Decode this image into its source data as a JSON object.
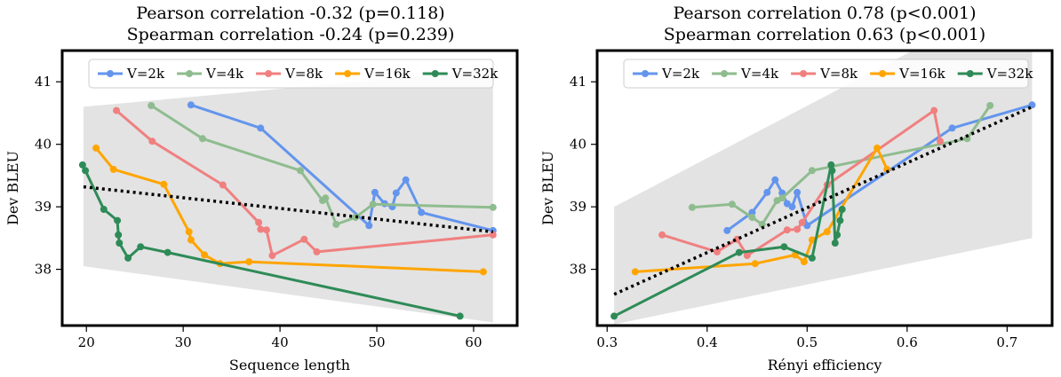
{
  "chart_data": [
    {
      "type": "line",
      "title": [
        "Pearson correlation -0.32 (p=0.118)",
        "Spearman correlation -0.24 (p=0.239)"
      ],
      "xlabel": "Sequence length",
      "ylabel": "Dev BLEU",
      "xlim": [
        17.5,
        64.5
      ],
      "ylim": [
        37.1,
        41.5
      ],
      "xticks": [
        20,
        30,
        40,
        50,
        60
      ],
      "yticks": [
        38,
        39,
        40,
        41
      ],
      "legend_loc": "top",
      "trend_line": [
        [
          19.7,
          39.32
        ],
        [
          62,
          38.6
        ]
      ],
      "confidence_band": [
        [
          19.7,
          38.05,
          40.6
        ],
        [
          62,
          37.15,
          41.2
        ]
      ],
      "series": [
        {
          "name": "V=2k",
          "color": "#6495ED",
          "points": [
            [
              30.8,
              40.63
            ],
            [
              38.0,
              40.26
            ],
            [
              49.2,
              38.7
            ],
            [
              49.8,
              39.23
            ],
            [
              50.8,
              39.05
            ],
            [
              51.6,
              39.0
            ],
            [
              52.0,
              39.22
            ],
            [
              53.0,
              39.43
            ],
            [
              54.6,
              38.91
            ],
            [
              62.0,
              38.62
            ]
          ]
        },
        {
          "name": "V=4k",
          "color": "#8FBC8F",
          "points": [
            [
              26.7,
              40.62
            ],
            [
              32.0,
              40.09
            ],
            [
              42.1,
              39.58
            ],
            [
              44.4,
              39.1
            ],
            [
              44.7,
              39.14
            ],
            [
              45.8,
              38.72
            ],
            [
              47.8,
              38.83
            ],
            [
              49.6,
              39.04
            ],
            [
              62.0,
              38.99
            ]
          ]
        },
        {
          "name": "V=8k",
          "color": "#F08080",
          "points": [
            [
              23.1,
              40.54
            ],
            [
              26.8,
              40.05
            ],
            [
              34.1,
              39.35
            ],
            [
              37.8,
              38.75
            ],
            [
              38.0,
              38.64
            ],
            [
              38.6,
              38.63
            ],
            [
              39.2,
              38.22
            ],
            [
              42.5,
              38.48
            ],
            [
              43.8,
              38.28
            ],
            [
              62.0,
              38.55
            ]
          ]
        },
        {
          "name": "V=16k",
          "color": "#FFA500",
          "points": [
            [
              21.0,
              39.94
            ],
            [
              22.8,
              39.6
            ],
            [
              28.0,
              39.36
            ],
            [
              30.6,
              38.6
            ],
            [
              30.8,
              38.47
            ],
            [
              32.2,
              38.23
            ],
            [
              33.8,
              38.09
            ],
            [
              36.8,
              38.12
            ],
            [
              61.0,
              37.96
            ]
          ]
        },
        {
          "name": "V=32k",
          "color": "#2E8B57",
          "points": [
            [
              19.6,
              39.67
            ],
            [
              19.9,
              39.58
            ],
            [
              21.8,
              38.96
            ],
            [
              23.2,
              38.78
            ],
            [
              23.3,
              38.55
            ],
            [
              23.4,
              38.42
            ],
            [
              24.3,
              38.18
            ],
            [
              25.6,
              38.36
            ],
            [
              28.4,
              38.27
            ],
            [
              58.6,
              37.25
            ]
          ]
        }
      ]
    },
    {
      "type": "line",
      "title": [
        "Pearson correlation 0.78 (p<0.001)",
        "Spearman correlation 0.63 (p<0.001)"
      ],
      "xlabel": "Rényi efficiency",
      "ylabel": "Dev BLEU",
      "xlim": [
        0.29,
        0.745
      ],
      "ylim": [
        37.1,
        41.5
      ],
      "xticks": [
        0.3,
        0.4,
        0.5,
        0.6,
        0.7
      ],
      "xtick_labels": [
        "0.3",
        "0.4",
        "0.5",
        "0.6",
        "0.7"
      ],
      "yticks": [
        38,
        39,
        40,
        41
      ],
      "legend_loc": "top",
      "trend_line": [
        [
          0.307,
          37.6
        ],
        [
          0.725,
          40.6
        ]
      ],
      "confidence_band": [
        [
          0.307,
          37.12,
          39.0
        ],
        [
          0.725,
          38.5,
          42.5
        ]
      ],
      "series": [
        {
          "name": "V=2k",
          "color": "#6495ED",
          "points": [
            [
              0.42,
              38.62
            ],
            [
              0.445,
              38.91
            ],
            [
              0.46,
              39.23
            ],
            [
              0.468,
              39.43
            ],
            [
              0.475,
              39.22
            ],
            [
              0.48,
              39.05
            ],
            [
              0.485,
              39.0
            ],
            [
              0.49,
              39.23
            ],
            [
              0.5,
              38.7
            ],
            [
              0.645,
              40.26
            ],
            [
              0.725,
              40.63
            ]
          ]
        },
        {
          "name": "V=4k",
          "color": "#8FBC8F",
          "points": [
            [
              0.385,
              38.99
            ],
            [
              0.425,
              39.04
            ],
            [
              0.445,
              38.83
            ],
            [
              0.455,
              38.72
            ],
            [
              0.47,
              39.1
            ],
            [
              0.475,
              39.14
            ],
            [
              0.505,
              39.58
            ],
            [
              0.66,
              40.09
            ],
            [
              0.683,
              40.62
            ]
          ]
        },
        {
          "name": "V=8k",
          "color": "#F08080",
          "points": [
            [
              0.355,
              38.55
            ],
            [
              0.41,
              38.28
            ],
            [
              0.43,
              38.48
            ],
            [
              0.44,
              38.22
            ],
            [
              0.48,
              38.63
            ],
            [
              0.49,
              38.64
            ],
            [
              0.495,
              38.75
            ],
            [
              0.52,
              39.35
            ],
            [
              0.627,
              40.54
            ],
            [
              0.633,
              40.05
            ]
          ]
        },
        {
          "name": "V=16k",
          "color": "#FFA500",
          "points": [
            [
              0.328,
              37.96
            ],
            [
              0.448,
              38.09
            ],
            [
              0.488,
              38.23
            ],
            [
              0.497,
              38.12
            ],
            [
              0.505,
              38.47
            ],
            [
              0.52,
              38.6
            ],
            [
              0.57,
              39.94
            ],
            [
              0.58,
              39.6
            ]
          ]
        },
        {
          "name": "V=32k",
          "color": "#2E8B57",
          "points": [
            [
              0.307,
              37.25
            ],
            [
              0.432,
              38.27
            ],
            [
              0.477,
              38.36
            ],
            [
              0.505,
              38.18
            ],
            [
              0.524,
              39.67
            ],
            [
              0.525,
              39.58
            ],
            [
              0.528,
              38.42
            ],
            [
              0.53,
              38.55
            ],
            [
              0.533,
              38.78
            ],
            [
              0.535,
              38.96
            ]
          ]
        }
      ]
    }
  ]
}
